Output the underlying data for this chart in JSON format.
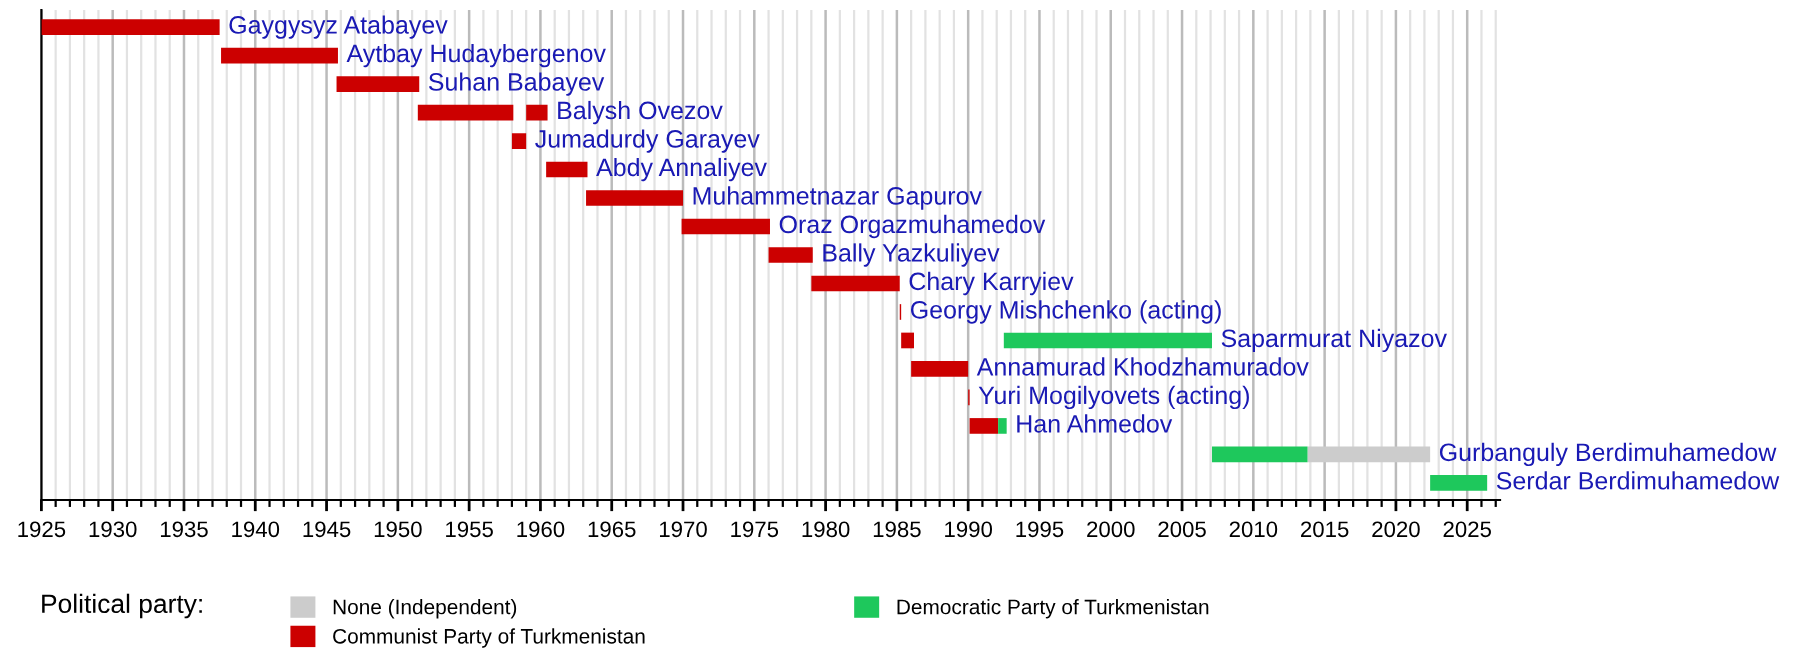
{
  "chart_data": {
    "type": "bar",
    "orientation": "horizontal",
    "categories": [
      null,
      null,
      null,
      null,
      null,
      null,
      null,
      null,
      null,
      null,
      null,
      null,
      null,
      null,
      null,
      null,
      null
    ],
    "annotations": [
      "Gaygysyz Atabayev",
      "Aytbay Hudaybergenov",
      "Suhan Babayev",
      "Balysh Ovezov",
      "Jumadurdy Garayev",
      "Abdy Annaliyev",
      "Muhammetnazar Gapurov",
      "Oraz Orgazmuhamedov",
      "Bally Yazkuliyev",
      "Chary Karryiev",
      "Georgy Mishchenko (acting)",
      "Saparmurat Niyazov",
      "Annamurad Khodzhamuradov",
      "Yuri Mogilyovets (acting)",
      "Han Ahmedov",
      "Gurbanguly Berdimuhamedow",
      "Serdar Berdimuhamedow"
    ],
    "series": [
      {
        "name": "None (Independent)",
        "color": "#cccccc",
        "base": [
          null,
          null,
          null,
          null,
          null,
          null,
          null,
          null,
          null,
          null,
          null,
          null,
          null,
          null,
          null,
          2013.8,
          null
        ],
        "values": [
          null,
          null,
          null,
          null,
          null,
          null,
          null,
          null,
          null,
          null,
          null,
          null,
          null,
          null,
          null,
          8.6,
          null
        ]
      },
      {
        "name": "Communist Party of Turkmenistan",
        "color": "#cc0000",
        "base": [
          1925.0,
          1937.6,
          1945.7,
          1951.4,
          1958.0,
          1960.4,
          1963.2,
          1969.9,
          1976.0,
          1979.0,
          1985.2,
          1985.3,
          1986.0,
          1990.0,
          1990.1,
          null,
          null
        ],
        "values": [
          12.5,
          8.2,
          5.8,
          6.7,
          1.0,
          2.9,
          6.8,
          6.2,
          3.1,
          6.2,
          0.1,
          0.9,
          4.0,
          0.1,
          2.0,
          null,
          null
        ]
      },
      {
        "name": "Democratic Party of Turkmenistan",
        "color": "#1ec85c",
        "base": [
          null,
          null,
          null,
          null,
          null,
          null,
          null,
          null,
          null,
          null,
          null,
          1992.5,
          null,
          null,
          1992.1,
          2007.1,
          2022.4
        ],
        "values": [
          null,
          null,
          null,
          null,
          null,
          null,
          null,
          null,
          null,
          null,
          null,
          14.6,
          null,
          null,
          0.6,
          6.7,
          4.0
        ]
      },
      {
        "color": "#cc0000",
        "base": [
          null,
          null,
          null,
          1959.0,
          null,
          null,
          null,
          null,
          null,
          null,
          null,
          null,
          null,
          null,
          null,
          null,
          null
        ],
        "values": [
          null,
          null,
          null,
          1.5,
          null,
          null,
          null,
          null,
          null,
          null,
          null,
          null,
          null,
          null,
          null,
          null,
          null
        ]
      }
    ],
    "xlim": [
      1925,
      2027.3
    ],
    "xticks": [
      1925,
      1930,
      1935,
      1940,
      1945,
      1950,
      1955,
      1960,
      1965,
      1970,
      1975,
      1980,
      1985,
      1990,
      1995,
      2000,
      2005,
      2010,
      2015,
      2020,
      2025
    ],
    "grid": "x",
    "legend": "bottom",
    "legend_title": "Political party:",
    "tick_labels": "x"
  }
}
